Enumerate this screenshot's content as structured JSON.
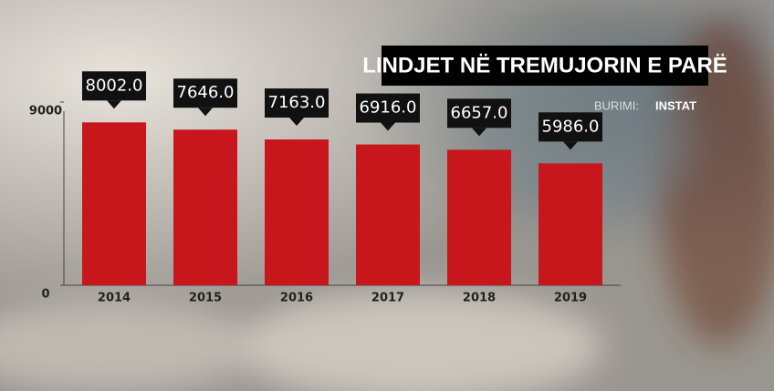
{
  "chart_data": {
    "type": "bar",
    "title": "LINDJET NË TREMUJORIN E PARË",
    "source_label": "BURIMI:",
    "source": "INSTAT",
    "categories": [
      "2014",
      "2015",
      "2016",
      "2017",
      "2018",
      "2019"
    ],
    "values": [
      8002,
      7646,
      7163,
      6916,
      6657,
      5986
    ],
    "value_labels": [
      "8002.0",
      "7646.0",
      "7163.0",
      "6916.0",
      "6657.0",
      "5986.0"
    ],
    "color": "#c8161d",
    "ylim": [
      0,
      9000
    ],
    "yticks": [
      0,
      9000
    ]
  }
}
